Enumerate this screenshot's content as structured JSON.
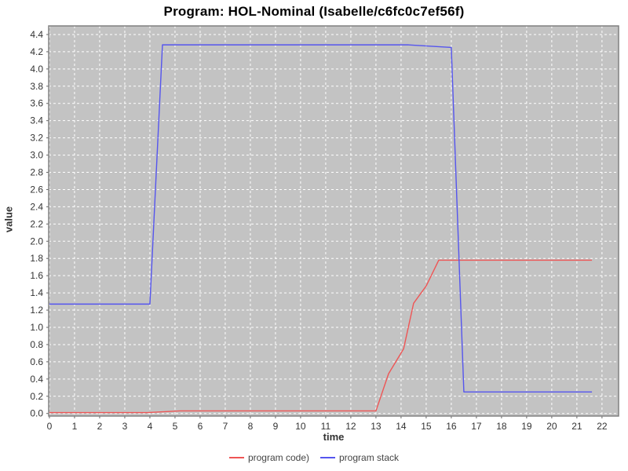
{
  "chart_data": {
    "type": "line",
    "title": "Program: HOL-Nominal (Isabelle/c6fc0c7ef56f)",
    "xlabel": "time",
    "ylabel": "value",
    "x_ticks": [
      0,
      1,
      2,
      3,
      4,
      5,
      6,
      7,
      8,
      9,
      10,
      11,
      12,
      13,
      14,
      15,
      16,
      17,
      18,
      19,
      20,
      21,
      22
    ],
    "y_ticks": [
      0.0,
      0.2,
      0.4,
      0.6,
      0.8,
      1.0,
      1.2,
      1.4,
      1.6,
      1.8,
      2.0,
      2.2,
      2.4,
      2.6,
      2.8,
      3.0,
      3.2,
      3.4,
      3.6,
      3.8,
      4.0,
      4.2,
      4.4
    ],
    "xlim": [
      -0.03,
      22.66
    ],
    "ylim": [
      -0.03,
      4.5
    ],
    "grid": true,
    "legend_position": "bottom",
    "plot_bg": "#c3c3c3",
    "grid_color": "#ffffff",
    "border_color": "#808080",
    "tick_color": "#666666",
    "series": [
      {
        "name": "program code)",
        "color": "#ee5555",
        "points": [
          [
            0,
            0.01
          ],
          [
            3.9,
            0.01
          ],
          [
            5.2,
            0.03
          ],
          [
            13.0,
            0.03
          ],
          [
            13.5,
            0.46
          ],
          [
            14.1,
            0.75
          ],
          [
            14.5,
            1.28
          ],
          [
            15.0,
            1.48
          ],
          [
            15.5,
            1.78
          ],
          [
            21.6,
            1.78
          ]
        ]
      },
      {
        "name": "program stack",
        "color": "#5555ee",
        "points": [
          [
            0,
            1.27
          ],
          [
            4.0,
            1.27
          ],
          [
            4.5,
            4.28
          ],
          [
            14.3,
            4.28
          ],
          [
            16.0,
            4.25
          ],
          [
            16.5,
            0.25
          ],
          [
            21.6,
            0.25
          ]
        ]
      }
    ]
  }
}
